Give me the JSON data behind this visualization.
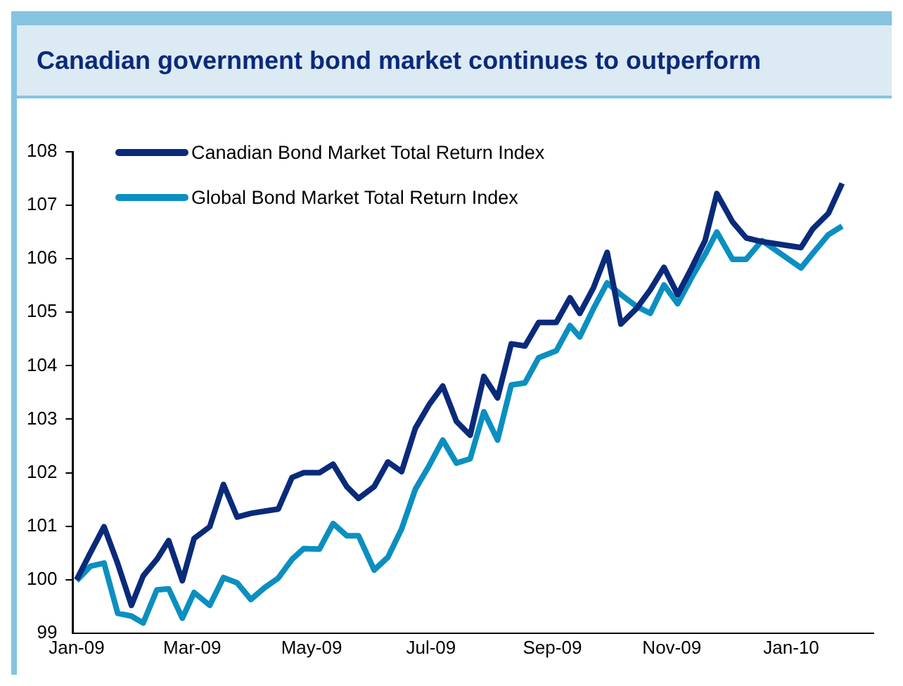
{
  "chart_data": {
    "type": "line",
    "title": "Canadian government bond market continues to outperform",
    "x": [
      "2009-01-01",
      "2009-01-08",
      "2009-01-15",
      "2009-01-22",
      "2009-01-29",
      "2009-02-04",
      "2009-02-11",
      "2009-02-17",
      "2009-02-24",
      "2009-03-02",
      "2009-03-10",
      "2009-03-17",
      "2009-03-24",
      "2009-03-31",
      "2009-04-07",
      "2009-04-14",
      "2009-04-21",
      "2009-04-27",
      "2009-05-05",
      "2009-05-12",
      "2009-05-19",
      "2009-05-25",
      "2009-06-02",
      "2009-06-09",
      "2009-06-16",
      "2009-06-23",
      "2009-06-30",
      "2009-07-07",
      "2009-07-14",
      "2009-07-21",
      "2009-07-28",
      "2009-08-04",
      "2009-08-11",
      "2009-08-18",
      "2009-08-25",
      "2009-09-03",
      "2009-09-10",
      "2009-09-15",
      "2009-09-22",
      "2009-09-29",
      "2009-10-06",
      "2009-10-14",
      "2009-10-21",
      "2009-10-28",
      "2009-11-04",
      "2009-11-11",
      "2009-11-18",
      "2009-11-24",
      "2009-12-02",
      "2009-12-09",
      "2009-12-17",
      "2010-01-06",
      "2010-01-12",
      "2010-01-20",
      "2010-01-27"
    ],
    "series": [
      {
        "name": "Canadian Bond Market Total Return Index",
        "color": "#0a2a7a",
        "values": [
          100.0,
          100.5,
          100.99,
          100.3,
          99.52,
          100.07,
          100.38,
          100.73,
          99.98,
          100.77,
          100.99,
          101.78,
          101.17,
          101.24,
          101.28,
          101.32,
          101.91,
          102.0,
          102.0,
          102.16,
          101.74,
          101.52,
          101.74,
          102.2,
          102.02,
          102.83,
          103.27,
          103.62,
          102.96,
          102.7,
          103.8,
          103.4,
          104.41,
          104.37,
          104.81,
          104.81,
          105.27,
          104.98,
          105.46,
          106.12,
          104.78,
          105.07,
          105.42,
          105.84,
          105.33,
          105.82,
          106.34,
          107.22,
          106.69,
          106.39,
          106.32,
          106.21,
          106.56,
          106.85,
          107.41
        ]
      },
      {
        "name": "Global Bond Market Total Return Index",
        "color": "#0b8fc0",
        "values": [
          99.98,
          100.25,
          100.31,
          99.37,
          99.32,
          99.19,
          99.81,
          99.83,
          99.28,
          99.76,
          99.52,
          100.04,
          99.94,
          99.63,
          99.85,
          100.03,
          100.38,
          100.58,
          100.57,
          101.05,
          100.82,
          100.82,
          100.18,
          100.42,
          100.95,
          101.69,
          102.13,
          102.61,
          102.18,
          102.26,
          103.14,
          102.61,
          103.64,
          103.68,
          104.15,
          104.28,
          104.75,
          104.54,
          105.07,
          105.55,
          105.33,
          105.11,
          104.98,
          105.51,
          105.16,
          105.64,
          106.08,
          106.5,
          105.99,
          105.99,
          106.34,
          105.83,
          106.1,
          106.45,
          106.61
        ]
      }
    ],
    "xticks": [
      {
        "value": "2009-01-01",
        "label": "Jan-09"
      },
      {
        "value": "2009-03-01",
        "label": "Mar-09"
      },
      {
        "value": "2009-05-01",
        "label": "May-09"
      },
      {
        "value": "2009-07-01",
        "label": "Jul-09"
      },
      {
        "value": "2009-09-01",
        "label": "Sep-09"
      },
      {
        "value": "2009-11-01",
        "label": "Nov-09"
      },
      {
        "value": "2010-01-01",
        "label": "Jan-10"
      }
    ],
    "xlim": [
      "2008-12-30",
      "2010-02-12"
    ],
    "ylim": [
      99,
      108
    ],
    "yticks": [
      99,
      100,
      101,
      102,
      103,
      104,
      105,
      106,
      107,
      108
    ],
    "grid": false,
    "legend": "top left",
    "marker": "none",
    "line_style": "solid"
  }
}
